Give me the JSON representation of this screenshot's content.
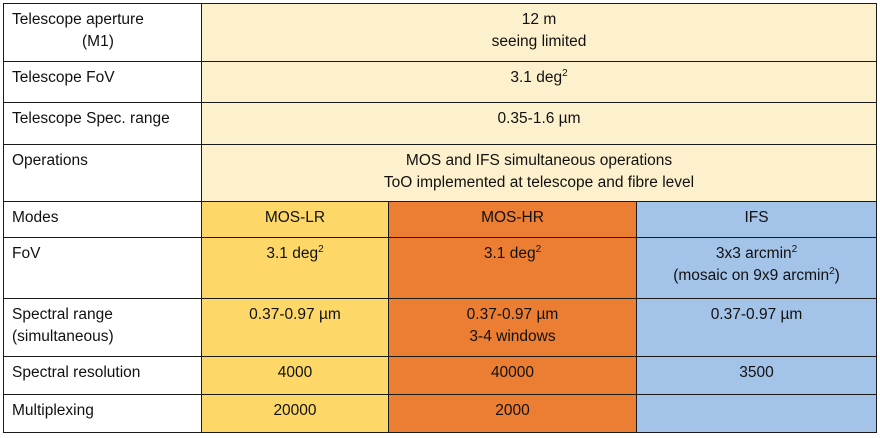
{
  "headers": {
    "mos_lr": "MOS-LR",
    "mos_hr": "MOS-HR",
    "ifs": "IFS"
  },
  "rows": {
    "aperture": {
      "label_line1": "Telescope aperture",
      "label_line2": "(M1)",
      "value_line1": "12 m",
      "value_line2": "seeing limited"
    },
    "telescope_fov": {
      "label": "Telescope FoV",
      "value": "3.1 deg",
      "value_sup": "2"
    },
    "spec_range": {
      "label": "Telescope Spec. range",
      "value": "0.35-1.6 µm"
    },
    "operations": {
      "label": "Operations",
      "value_line1": "MOS and IFS simultaneous operations",
      "value_line2": "ToO implemented at telescope and fibre level"
    },
    "modes": {
      "label": "Modes"
    },
    "fov": {
      "label": "FoV",
      "mos_lr": "3.1 deg",
      "mos_lr_sup": "2",
      "mos_hr": "3.1 deg",
      "mos_hr_sup": "2",
      "ifs_line1": "3x3 arcmin",
      "ifs_line1_sup": "2",
      "ifs_line2_pre": "(mosaic on 9x9 arcmin",
      "ifs_line2_sup": "2",
      "ifs_line2_post": ")"
    },
    "spectral_range": {
      "label_line1": "Spectral range",
      "label_line2": "(simultaneous)",
      "mos_lr": "0.37-0.97 µm",
      "mos_hr_line1": "0.37-0.97 µm",
      "mos_hr_line2": "3-4 windows",
      "ifs": "0.37-0.97 µm"
    },
    "spectral_resolution": {
      "label": "Spectral resolution",
      "mos_lr": "4000",
      "mos_hr": "40000",
      "ifs": "3500"
    },
    "multiplexing": {
      "label": "Multiplexing",
      "mos_lr": "20000",
      "mos_hr": "2000",
      "ifs": ""
    }
  },
  "colors": {
    "cream": "#fdf0cc",
    "mos_lr": "#fdd868",
    "mos_hr": "#ec7e33",
    "ifs": "#a4c3e8"
  }
}
